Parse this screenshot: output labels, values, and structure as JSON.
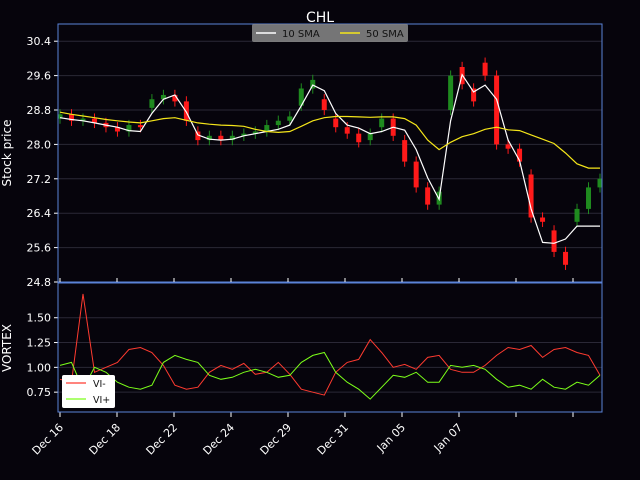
{
  "chart_data": [
    {
      "type": "candlestick",
      "title": "CHL",
      "ylabel": "Stock price",
      "ylim": [
        24.8,
        30.8
      ],
      "yticks": [
        "30.4",
        "29.6",
        "28.8",
        "28.0",
        "27.2",
        "26.4",
        "25.6",
        "24.8"
      ],
      "grid": true,
      "legend_placement": "top-center",
      "colors": {
        "background": "#06040c",
        "frame": "#5b83d9",
        "up": "#1f8a1f",
        "down": "#ff1a1a",
        "sma10": "#ffffff",
        "sma50": "#f5e61a"
      },
      "legend": [
        {
          "label": "10 SMA",
          "color": "#ffffff"
        },
        {
          "label": "50 SMA",
          "color": "#f5e61a"
        }
      ],
      "x": [
        0,
        1,
        2,
        3,
        4,
        5,
        6,
        7,
        8,
        9,
        10,
        11,
        12,
        13,
        14,
        15,
        16,
        17,
        18,
        19,
        20,
        21,
        22,
        23,
        24,
        25,
        26,
        27,
        28,
        29,
        30,
        31,
        32,
        33,
        34,
        35,
        36,
        37,
        38,
        39,
        40,
        41,
        42,
        43,
        44,
        45,
        46,
        47
      ],
      "series": [
        {
          "name": "10 SMA",
          "values": [
            28.62,
            28.58,
            28.55,
            28.5,
            28.45,
            28.4,
            28.32,
            28.3,
            28.72,
            29.05,
            29.15,
            28.75,
            28.22,
            28.12,
            28.1,
            28.12,
            28.2,
            28.25,
            28.3,
            28.35,
            28.45,
            28.9,
            29.38,
            29.25,
            28.72,
            28.45,
            28.38,
            28.25,
            28.3,
            28.4,
            28.33,
            27.88,
            27.22,
            26.72,
            28.55,
            29.62,
            29.22,
            29.38,
            29.05,
            28.1,
            27.62,
            26.5,
            25.72,
            25.7,
            25.8,
            26.1,
            26.1,
            26.1
          ]
        },
        {
          "name": "50 SMA",
          "values": [
            28.75,
            28.7,
            28.66,
            28.62,
            28.58,
            28.55,
            28.52,
            28.5,
            28.55,
            28.6,
            28.62,
            28.56,
            28.5,
            28.47,
            28.45,
            28.44,
            28.42,
            28.35,
            28.3,
            28.28,
            28.3,
            28.42,
            28.55,
            28.62,
            28.65,
            28.65,
            28.64,
            28.63,
            28.64,
            28.64,
            28.6,
            28.45,
            28.1,
            27.88,
            28.05,
            28.18,
            28.25,
            28.35,
            28.4,
            28.34,
            28.32,
            28.22,
            28.12,
            28.02,
            27.8,
            27.55,
            27.45,
            27.45
          ]
        }
      ],
      "candles": [
        {
          "o": 28.6,
          "c": 28.7
        },
        {
          "o": 28.7,
          "c": 28.55
        },
        {
          "o": 28.55,
          "c": 28.6
        },
        {
          "o": 28.6,
          "c": 28.5
        },
        {
          "o": 28.5,
          "c": 28.4
        },
        {
          "o": 28.4,
          "c": 28.3
        },
        {
          "o": 28.3,
          "c": 28.45
        },
        {
          "o": 28.45,
          "c": 28.4
        },
        {
          "o": 28.85,
          "c": 29.05
        },
        {
          "o": 29.05,
          "c": 29.15
        },
        {
          "o": 29.15,
          "c": 29.0
        },
        {
          "o": 29.0,
          "c": 28.55
        },
        {
          "o": 28.3,
          "c": 28.1
        },
        {
          "o": 28.1,
          "c": 28.2
        },
        {
          "o": 28.2,
          "c": 28.1
        },
        {
          "o": 28.1,
          "c": 28.2
        },
        {
          "o": 28.2,
          "c": 28.25
        },
        {
          "o": 28.25,
          "c": 28.3
        },
        {
          "o": 28.3,
          "c": 28.45
        },
        {
          "o": 28.45,
          "c": 28.55
        },
        {
          "o": 28.55,
          "c": 28.65
        },
        {
          "o": 28.9,
          "c": 29.3
        },
        {
          "o": 29.3,
          "c": 29.5
        },
        {
          "o": 29.05,
          "c": 28.8
        },
        {
          "o": 28.6,
          "c": 28.4
        },
        {
          "o": 28.4,
          "c": 28.25
        },
        {
          "o": 28.25,
          "c": 28.05
        },
        {
          "o": 28.1,
          "c": 28.25
        },
        {
          "o": 28.4,
          "c": 28.6
        },
        {
          "o": 28.6,
          "c": 28.2
        },
        {
          "o": 28.1,
          "c": 27.6
        },
        {
          "o": 27.6,
          "c": 27.0
        },
        {
          "o": 27.0,
          "c": 26.6
        },
        {
          "o": 26.6,
          "c": 26.9
        },
        {
          "o": 28.8,
          "c": 29.6
        },
        {
          "o": 29.8,
          "c": 29.4
        },
        {
          "o": 29.3,
          "c": 29.0
        },
        {
          "o": 29.9,
          "c": 29.6
        },
        {
          "o": 29.6,
          "c": 28.0
        },
        {
          "o": 28.0,
          "c": 27.9
        },
        {
          "o": 27.9,
          "c": 27.6
        },
        {
          "o": 27.3,
          "c": 26.3
        },
        {
          "o": 26.3,
          "c": 26.2
        },
        {
          "o": 26.0,
          "c": 25.5
        },
        {
          "o": 25.5,
          "c": 25.2
        },
        {
          "o": 26.2,
          "c": 26.5
        },
        {
          "o": 26.5,
          "c": 27.0
        },
        {
          "o": 27.0,
          "c": 27.2
        }
      ]
    },
    {
      "type": "line",
      "ylabel": "VORTEX",
      "ylim": [
        0.55,
        1.85
      ],
      "yticks": [
        "1.50",
        "1.25",
        "1.00",
        "0.75"
      ],
      "legend_placement": "lower-left",
      "xtick_labels": [
        "Dec 16",
        "Dec 18",
        "Dec 22",
        "Dec 24",
        "Dec 29",
        "Dec 31",
        "Jan 05",
        "Jan 07",
        "",
        ""
      ],
      "x": [
        0,
        1,
        2,
        3,
        4,
        5,
        6,
        7,
        8,
        9,
        10,
        11,
        12,
        13,
        14,
        15,
        16,
        17,
        18,
        19,
        20,
        21,
        22,
        23,
        24,
        25,
        26,
        27,
        28,
        29,
        30,
        31,
        32,
        33,
        34,
        35,
        36,
        37,
        38,
        39,
        40,
        41,
        42,
        43,
        44,
        45,
        46,
        47
      ],
      "series": [
        {
          "name": "VI-",
          "color": "#ff3b30",
          "values": [
            0.88,
            0.85,
            1.74,
            0.95,
            1.0,
            1.05,
            1.18,
            1.2,
            1.15,
            1.02,
            0.82,
            0.78,
            0.8,
            0.95,
            1.02,
            0.98,
            1.04,
            0.93,
            0.95,
            1.05,
            0.93,
            0.78,
            0.75,
            0.72,
            0.95,
            1.05,
            1.08,
            1.28,
            1.15,
            1.0,
            1.03,
            0.98,
            1.1,
            1.12,
            0.98,
            0.95,
            0.95,
            1.02,
            1.12,
            1.2,
            1.18,
            1.22,
            1.1,
            1.18,
            1.2,
            1.15,
            1.12,
            0.92
          ]
        },
        {
          "name": "VI+",
          "color": "#7cff1a",
          "values": [
            1.02,
            1.05,
            0.78,
            1.0,
            0.95,
            0.85,
            0.8,
            0.78,
            0.82,
            1.05,
            1.12,
            1.08,
            1.05,
            0.92,
            0.88,
            0.9,
            0.95,
            0.98,
            0.95,
            0.9,
            0.92,
            1.05,
            1.12,
            1.15,
            0.95,
            0.85,
            0.78,
            0.68,
            0.8,
            0.92,
            0.9,
            0.95,
            0.85,
            0.85,
            1.02,
            1.0,
            1.02,
            0.98,
            0.88,
            0.8,
            0.82,
            0.78,
            0.88,
            0.8,
            0.78,
            0.85,
            0.82,
            0.92
          ]
        }
      ]
    }
  ]
}
